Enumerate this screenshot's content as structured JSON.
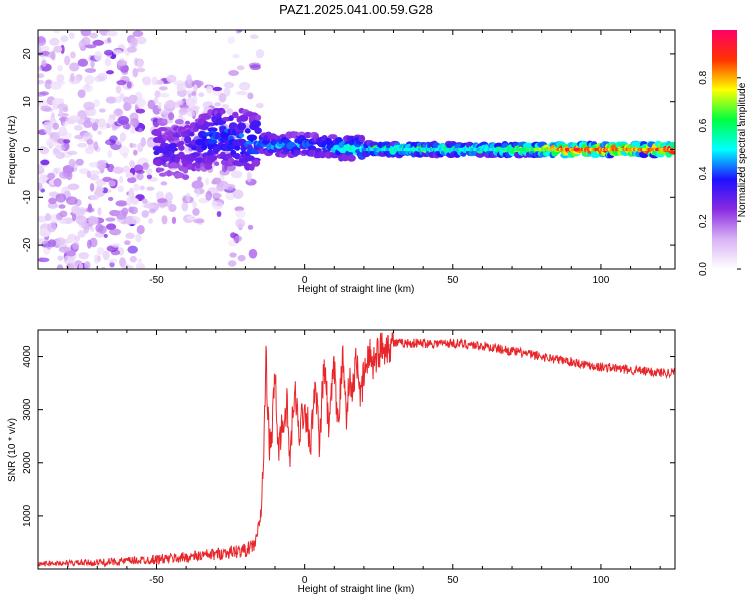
{
  "title": "PAZ1.2025.041.00.59.G28",
  "chart_data": [
    {
      "type": "heatmap",
      "xlabel": "Height of straight line (km)",
      "ylabel": "Frequency (Hz)",
      "xlim": [
        -90,
        125
      ],
      "ylim": [
        -25,
        25
      ],
      "xticks": [
        -50,
        0,
        50,
        100
      ],
      "yticks": [
        -20,
        -10,
        0,
        10,
        20
      ],
      "colorbar": {
        "label": "Normalized spectral amplitude",
        "range": [
          0,
          1
        ],
        "ticks": [
          "0.0",
          "0.2",
          "0.4",
          "0.6",
          "0.8"
        ],
        "colors": [
          "#ffffff",
          "#d9b3f5",
          "#8a2be2",
          "#1e10ff",
          "#00ffff",
          "#00ff40",
          "#ffff00",
          "#ff3300",
          "#ff0066"
        ]
      },
      "ridge": {
        "x": [
          -40,
          -30,
          -20,
          -10,
          0,
          10,
          20,
          30,
          40,
          50,
          60,
          70,
          80,
          90,
          100,
          110,
          120
        ],
        "center_frequency": [
          0,
          3,
          2,
          1,
          1,
          0.5,
          0.2,
          0,
          0,
          0,
          0,
          0,
          0,
          0,
          0,
          0,
          0
        ],
        "amplitude": [
          0.2,
          0.3,
          0.3,
          0.35,
          0.3,
          0.35,
          0.45,
          0.5,
          0.5,
          0.5,
          0.5,
          0.55,
          0.65,
          0.85,
          0.8,
          0.75,
          0.85
        ]
      }
    },
    {
      "type": "line",
      "xlabel": "Height of straight line (km)",
      "ylabel": "SNR (10 * v/v)",
      "xlim": [
        -90,
        125
      ],
      "ylim": [
        0,
        4500
      ],
      "xticks": [
        -50,
        0,
        50,
        100
      ],
      "yticks": [
        1000,
        2000,
        3000,
        4000
      ],
      "color": "#e8262a",
      "series": [
        {
          "x": [
            -90,
            -80,
            -70,
            -60,
            -50,
            -40,
            -30,
            -25,
            -20,
            -17,
            -15,
            -14,
            -13,
            -12,
            -11,
            -10,
            -9,
            -8,
            -7,
            -6,
            -5,
            -4,
            -3,
            -2,
            -1,
            0,
            1,
            2,
            3,
            4,
            5,
            6,
            7,
            8,
            9,
            10,
            11,
            12,
            13,
            14,
            15,
            16,
            17,
            18,
            19,
            20,
            21,
            22,
            23,
            24,
            25,
            27,
            30,
            35,
            40,
            45,
            50,
            55,
            60,
            65,
            70,
            75,
            80,
            85,
            90,
            95,
            100,
            105,
            110,
            115,
            120,
            125
          ],
          "y": [
            100,
            110,
            120,
            150,
            180,
            220,
            280,
            320,
            350,
            450,
            900,
            1800,
            4000,
            2300,
            2500,
            3800,
            2200,
            2600,
            2800,
            3100,
            2000,
            2900,
            3300,
            2500,
            2900,
            3000,
            2800,
            2300,
            3100,
            3300,
            2200,
            3400,
            3800,
            2600,
            3200,
            3800,
            2800,
            3300,
            4000,
            2900,
            3600,
            3200,
            3800,
            3900,
            3100,
            3700,
            3800,
            4100,
            3900,
            4000,
            4100,
            4200,
            4250,
            4250,
            4250,
            4250,
            4250,
            4230,
            4200,
            4150,
            4100,
            4050,
            4000,
            3950,
            3900,
            3850,
            3800,
            3780,
            3750,
            3720,
            3700,
            3700
          ]
        }
      ]
    }
  ]
}
